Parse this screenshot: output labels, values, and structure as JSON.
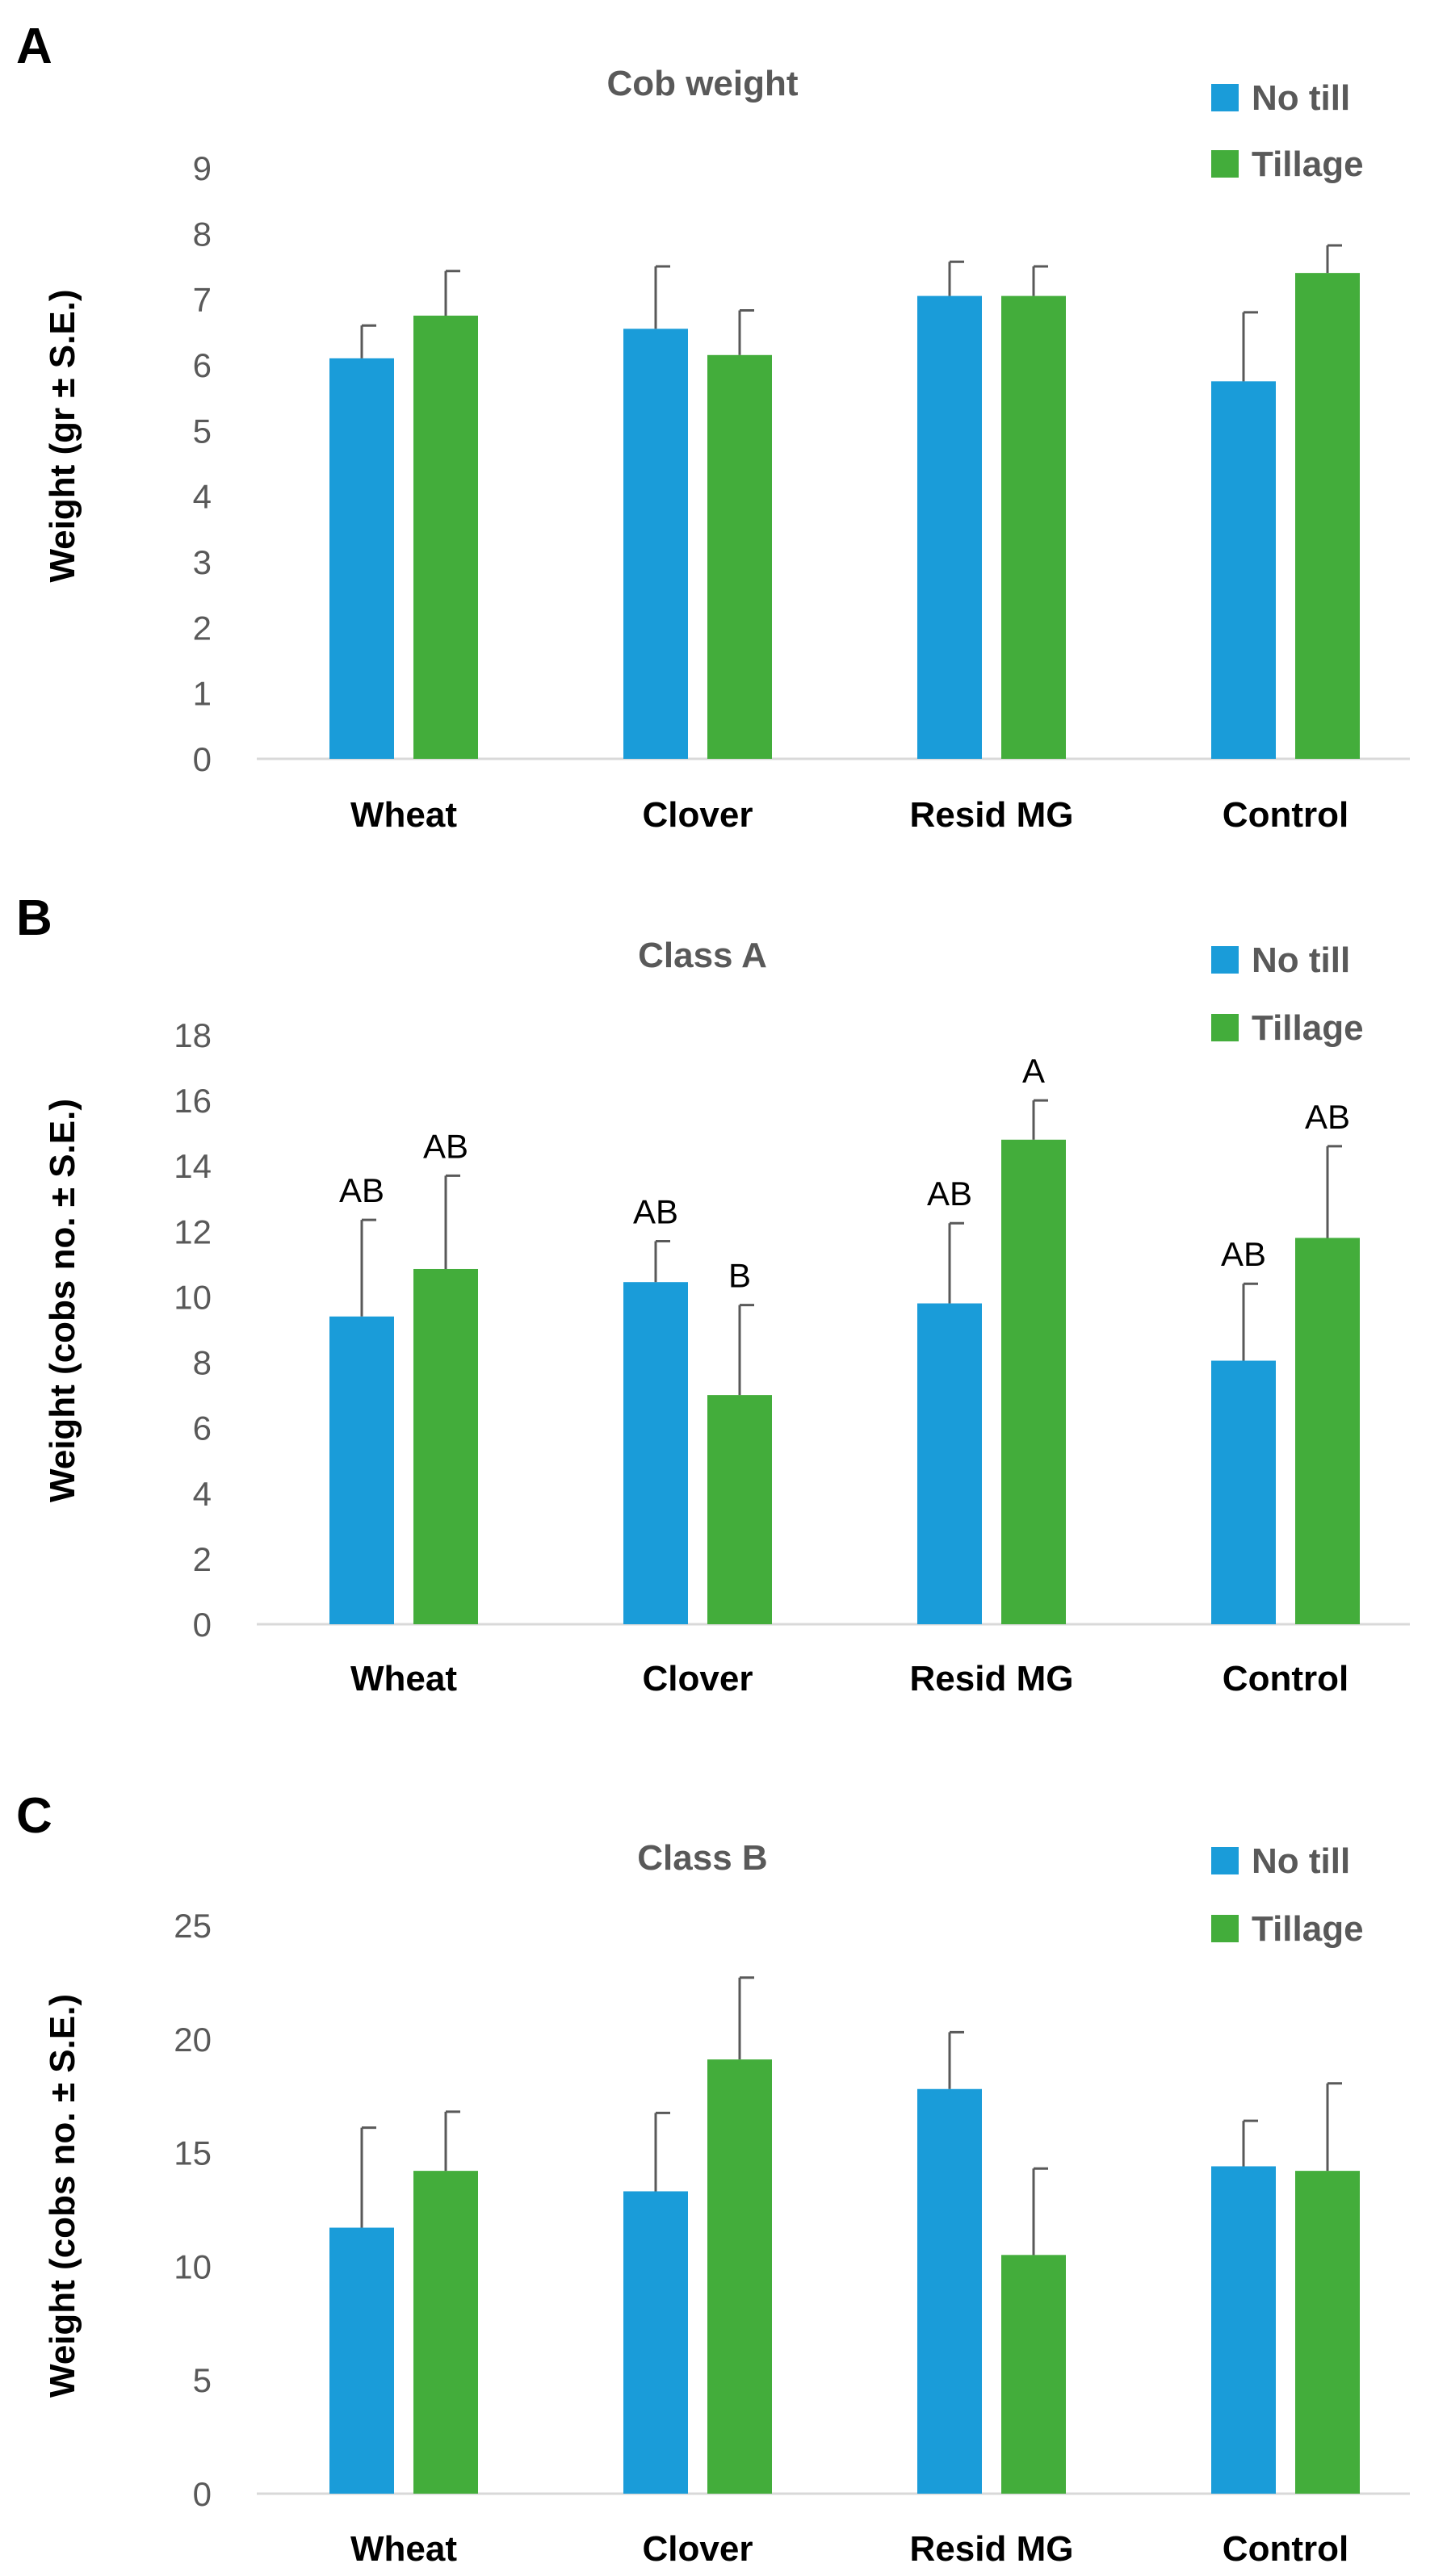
{
  "figure": {
    "series_colors": {
      "No till": "#1a9cd9",
      "Tillage": "#43ad3b"
    },
    "axis_text_color": "#595959",
    "label_color": "#000000",
    "error_bar_color": "#595959"
  },
  "chart_data": [
    {
      "panel": "A",
      "type": "bar",
      "title": "Cob weight",
      "ylabel": "Weight (gr ± S.E.)",
      "xlabel": "",
      "categories": [
        "Wheat",
        "Clover",
        "Resid MG",
        "Control"
      ],
      "ylim": [
        0,
        9
      ],
      "yticks": [
        0,
        1,
        2,
        3,
        4,
        5,
        6,
        7,
        8,
        9
      ],
      "grid": false,
      "legend": "top-right",
      "series": [
        {
          "name": "No till",
          "values": [
            6.1,
            6.55,
            7.05,
            5.75
          ],
          "errors": [
            0.5,
            0.95,
            0.52,
            1.05
          ],
          "labels": [
            "",
            "",
            "",
            ""
          ]
        },
        {
          "name": "Tillage",
          "values": [
            6.75,
            6.15,
            7.05,
            7.4
          ],
          "errors": [
            0.68,
            0.68,
            0.45,
            0.42
          ],
          "labels": [
            "",
            "",
            "",
            ""
          ]
        }
      ]
    },
    {
      "panel": "B",
      "type": "bar",
      "title": "Class A",
      "ylabel": "Weight (cobs no. ± S.E.)",
      "xlabel": "",
      "categories": [
        "Wheat",
        "Clover",
        "Resid MG",
        "Control"
      ],
      "ylim": [
        0,
        18
      ],
      "yticks": [
        0,
        2,
        4,
        6,
        8,
        10,
        12,
        14,
        16,
        18
      ],
      "grid": false,
      "legend": "top-right",
      "series": [
        {
          "name": "No till",
          "values": [
            9.4,
            10.45,
            9.8,
            8.05
          ],
          "errors": [
            2.95,
            1.25,
            2.45,
            2.35
          ],
          "labels": [
            "AB",
            "AB",
            "AB",
            "AB"
          ]
        },
        {
          "name": "Tillage",
          "values": [
            10.85,
            7.0,
            14.8,
            11.8
          ],
          "errors": [
            2.85,
            2.75,
            1.2,
            2.8
          ],
          "labels": [
            "AB",
            "B",
            "A",
            "AB"
          ]
        }
      ]
    },
    {
      "panel": "C",
      "type": "bar",
      "title": "Class B",
      "ylabel": "Weight (cobs no. ± S.E.)",
      "xlabel": "",
      "categories": [
        "Wheat",
        "Clover",
        "Resid MG",
        "Control"
      ],
      "ylim": [
        0,
        25
      ],
      "yticks": [
        0,
        5,
        10,
        15,
        20,
        25
      ],
      "grid": false,
      "legend": "top-right",
      "series": [
        {
          "name": "No till",
          "values": [
            11.7,
            13.3,
            17.8,
            14.4
          ],
          "errors": [
            4.4,
            3.45,
            2.5,
            2.0
          ],
          "labels": [
            "",
            "",
            "",
            ""
          ]
        },
        {
          "name": "Tillage",
          "values": [
            14.2,
            19.1,
            10.5,
            14.2
          ],
          "errors": [
            2.6,
            3.6,
            3.8,
            3.85
          ],
          "labels": [
            "",
            "",
            "",
            ""
          ]
        }
      ]
    }
  ]
}
